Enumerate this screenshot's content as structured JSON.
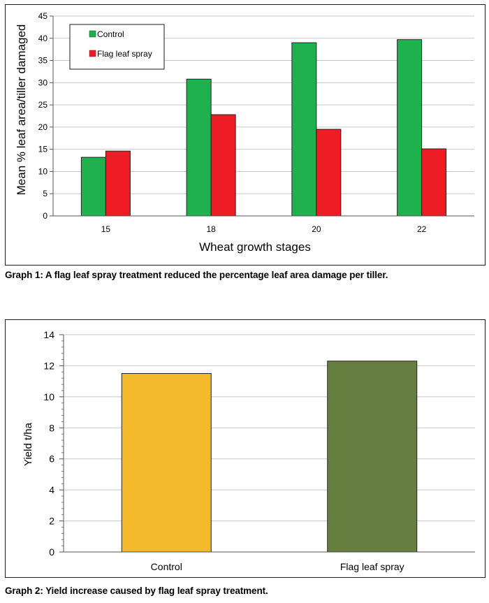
{
  "chart_data": [
    {
      "type": "bar",
      "categories": [
        "15",
        "18",
        "20",
        "22"
      ],
      "series": [
        {
          "name": "Control",
          "color": "#1fb14e",
          "values": [
            13.2,
            30.8,
            39.0,
            39.7
          ]
        },
        {
          "name": "Flag leaf spray",
          "color": "#ee1c25",
          "values": [
            14.6,
            22.8,
            19.5,
            15.1
          ]
        }
      ],
      "title": "",
      "xlabel": "Wheat growth stages",
      "ylabel": "Mean % leaf area/tiller damaged",
      "ylim": [
        0,
        45
      ],
      "yticks": [
        0,
        5,
        10,
        15,
        20,
        25,
        30,
        35,
        40,
        45
      ],
      "grid": true,
      "legend": "top-left"
    },
    {
      "type": "bar",
      "categories": [
        "Control",
        "Flag leaf spray"
      ],
      "values": [
        11.5,
        12.3
      ],
      "colors": [
        "#f5b92e",
        "#667f41"
      ],
      "title": "",
      "xlabel": "",
      "ylabel": "Yield t/ha",
      "ylim": [
        0,
        14
      ],
      "yticks": [
        0,
        2,
        4,
        6,
        8,
        10,
        12,
        14
      ],
      "grid": true
    }
  ],
  "captions": {
    "graph1": "Graph 1: A flag leaf spray treatment reduced the percentage leaf area damage per tiller.",
    "graph2": "Graph 2: Yield increase caused by flag leaf spray treatment."
  }
}
